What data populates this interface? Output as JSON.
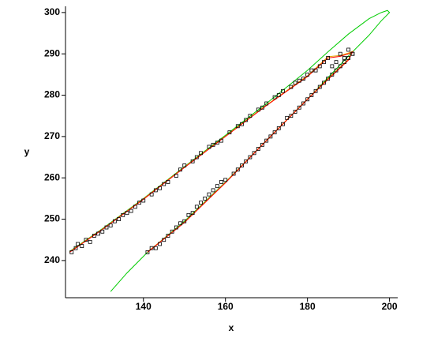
{
  "chart_data": {
    "type": "scatter",
    "xlabel": "x",
    "ylabel": "y",
    "xlim": [
      121,
      202
    ],
    "ylim": [
      231,
      301.5
    ],
    "xticks": [
      140,
      160,
      180,
      200
    ],
    "yticks": [
      240,
      250,
      260,
      270,
      280,
      290,
      300
    ],
    "series": [
      {
        "mode": "line",
        "color": "#00cc00",
        "x": [
          132,
          136,
          141,
          150,
          160,
          170,
          180,
          190,
          195,
          198,
          200,
          199.5,
          198,
          195,
          190,
          185,
          180,
          170,
          160,
          150,
          140,
          130,
          122
        ],
        "values": [
          232.5,
          237,
          242,
          249.5,
          259,
          269,
          279,
          289.5,
          294.5,
          298,
          300,
          300.5,
          300,
          298.5,
          294.8,
          290.5,
          286,
          278,
          270.3,
          262.7,
          255,
          247.7,
          242.2
        ]
      },
      {
        "mode": "line",
        "color": "#e6a000",
        "x": [
          122,
          130,
          140,
          150,
          160,
          170,
          180,
          185,
          188,
          190,
          191,
          190,
          185,
          180,
          170,
          160,
          150,
          141
        ],
        "values": [
          242.1,
          247.6,
          254.9,
          262.6,
          270.1,
          277.6,
          284.7,
          289.3,
          289.6,
          290.2,
          290.6,
          288.7,
          284,
          279.1,
          269.1,
          258.9,
          249.3,
          242.1
        ]
      },
      {
        "mode": "line",
        "color": "#ff0000",
        "x": [
          122,
          130,
          140,
          150,
          160,
          170,
          180,
          185,
          188,
          190,
          191,
          190,
          185,
          180,
          170,
          160,
          150,
          141
        ],
        "values": [
          242,
          247.5,
          254.8,
          262.5,
          270,
          277.5,
          284.5,
          289,
          289.4,
          290,
          290.5,
          288.5,
          283.8,
          279,
          269,
          258.8,
          249.2,
          242
        ]
      },
      {
        "mode": "markers",
        "color": "#000000",
        "x": [
          122.5,
          123.5,
          124,
          125,
          126,
          127,
          128,
          129,
          130,
          131,
          132,
          133,
          134,
          135,
          136,
          137,
          138,
          139,
          140,
          142,
          143,
          144,
          145,
          146,
          148,
          149,
          150,
          152,
          153,
          154,
          156,
          157,
          158,
          159,
          161,
          163,
          164,
          165,
          166,
          168,
          169,
          170,
          172,
          173,
          174,
          176,
          177,
          178,
          179,
          180,
          181,
          182,
          183,
          184,
          185,
          186,
          187,
          188,
          189,
          190,
          191,
          141,
          142,
          143,
          144,
          145,
          146,
          147,
          148,
          149,
          150,
          151,
          152,
          153,
          154,
          155,
          156,
          157,
          158,
          159,
          160,
          162,
          163,
          164,
          165,
          166,
          167,
          168,
          169,
          170,
          171,
          172,
          173,
          174,
          175,
          176,
          177,
          178,
          179,
          180,
          181,
          182,
          183,
          184,
          185,
          186,
          187,
          188,
          189,
          190,
          191
        ],
        "values": [
          242,
          243,
          244,
          243.5,
          245,
          244.5,
          246,
          246.5,
          247,
          248,
          248.5,
          249.5,
          250,
          251,
          251.5,
          252,
          253,
          254,
          254.5,
          256,
          257,
          257.5,
          258.5,
          259,
          260.5,
          262,
          263,
          264,
          265,
          266,
          267.5,
          268,
          268.5,
          269,
          271,
          272.5,
          273,
          274,
          275,
          276.5,
          277,
          278,
          279.5,
          280,
          281,
          282,
          283,
          283.5,
          284,
          285,
          286,
          286,
          287,
          288,
          289,
          287,
          288,
          290,
          289,
          291,
          290,
          242,
          243,
          243,
          244,
          245,
          246,
          247,
          248,
          249,
          249.5,
          251,
          251.5,
          253,
          254,
          255,
          256,
          257,
          258,
          259,
          259.5,
          261,
          262,
          263,
          264,
          265,
          266,
          267,
          268,
          269,
          270,
          271,
          272,
          273,
          274.5,
          275,
          276,
          277,
          278,
          279,
          280,
          281,
          282,
          283,
          284,
          285,
          286,
          287,
          288,
          289,
          290
        ]
      }
    ]
  }
}
